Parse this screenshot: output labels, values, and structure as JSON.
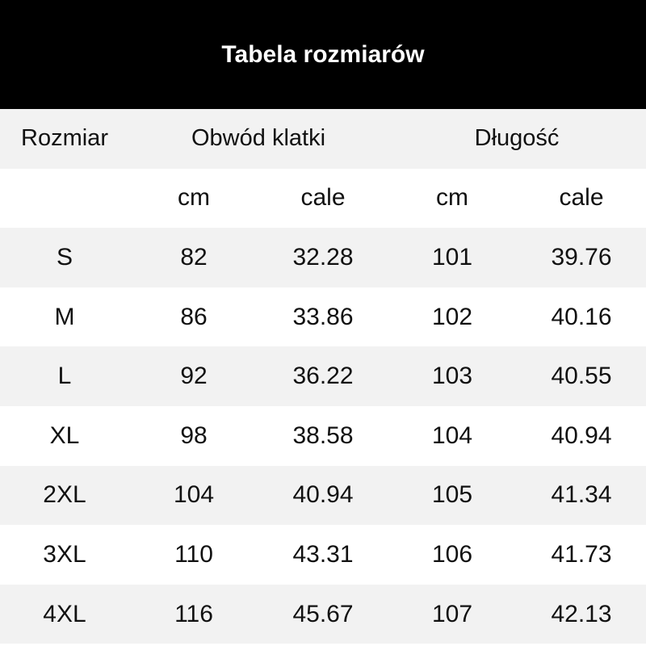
{
  "title": "Tabela rozmiarów",
  "headers": {
    "size": "Rozmiar",
    "chest": "Obwód klatki",
    "length": "Długość"
  },
  "units": [
    "cm",
    "cale",
    "cm",
    "cale"
  ],
  "rows": [
    {
      "size": "S",
      "chest_cm": "82",
      "chest_in": "32.28",
      "length_cm": "101",
      "length_in": "39.76"
    },
    {
      "size": "M",
      "chest_cm": "86",
      "chest_in": "33.86",
      "length_cm": "102",
      "length_in": "40.16"
    },
    {
      "size": "L",
      "chest_cm": "92",
      "chest_in": "36.22",
      "length_cm": "103",
      "length_in": "40.55"
    },
    {
      "size": "XL",
      "chest_cm": "98",
      "chest_in": "38.58",
      "length_cm": "104",
      "length_in": "40.94"
    },
    {
      "size": "2XL",
      "chest_cm": "104",
      "chest_in": "40.94",
      "length_cm": "105",
      "length_in": "41.34"
    },
    {
      "size": "3XL",
      "chest_cm": "110",
      "chest_in": "43.31",
      "length_cm": "106",
      "length_in": "41.73"
    },
    {
      "size": "4XL",
      "chest_cm": "116",
      "chest_in": "45.67",
      "length_cm": "107",
      "length_in": "42.13"
    }
  ]
}
